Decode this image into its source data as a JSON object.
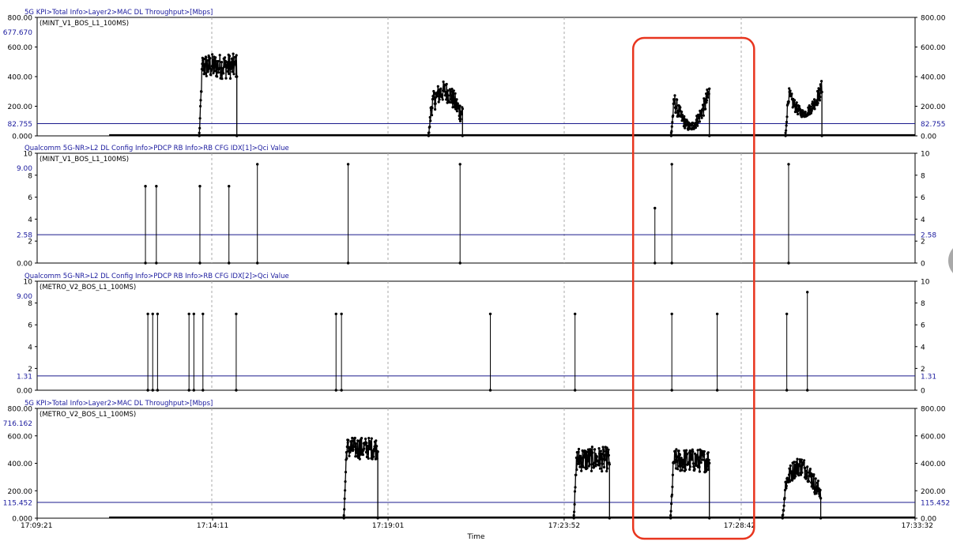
{
  "colors": {
    "plot_border": "#000000",
    "grid": "#a8a8a8",
    "data_line": "#000000",
    "reference_line": "#1a1a8c",
    "path_label": "#1a1a9e",
    "reference_label": "#1a1a9e",
    "highlight_box": "#e8351e",
    "scroll_knob": "#9a9a9a"
  },
  "x_axis": {
    "label": "Time",
    "ticks": [
      "17:09:21",
      "17:14:11",
      "17:19:01",
      "17:23:52",
      "17:28:42",
      "17:33:32"
    ],
    "grid": "dashed"
  },
  "highlight": {
    "shape": "rounded-rectangle",
    "from_time": "17:25:46",
    "to_time": "17:29:06"
  },
  "chart_data": [
    {
      "type": "line",
      "path_label": "5G KPI>Total Info>Layer2>MAC DL Throughput>[Mbps]",
      "legend": "(MINT_V1_BOS_L1_100MS)",
      "ylim": [
        0,
        800
      ],
      "y_ticks": [
        "800.00",
        "600.00",
        "400.00",
        "200.00",
        "0.000"
      ],
      "right_y_ticks": [
        "800.00",
        "600.00",
        "400.00",
        "200.00",
        "0.00"
      ],
      "y_max_label": "677.670",
      "reference_value": 82.755,
      "reference_label": "82.755",
      "time_span": [
        "17:09:21",
        "17:33:32"
      ],
      "bursts": [
        {
          "start": "17:13:49",
          "end": "17:14:51",
          "base": 470,
          "amp": 85,
          "peak": 665
        },
        {
          "start": "17:20:08",
          "end": "17:21:04",
          "base": 300,
          "amp": 70,
          "peak": 590,
          "shape": "hump"
        },
        {
          "start": "17:26:49",
          "end": "17:27:52",
          "base": 290,
          "amp": 70,
          "peak": 420,
          "shape": "saddle",
          "mid": 60
        },
        {
          "start": "17:29:58",
          "end": "17:30:58",
          "base": 320,
          "amp": 60,
          "peak": 550,
          "shape": "saddle",
          "mid": 150
        }
      ],
      "baseline_spans": [
        [
          "17:11:20",
          "17:33:32"
        ]
      ]
    },
    {
      "type": "line",
      "path_label": "Qualcomm 5G-NR>L2 DL Config Info>PDCP RB Info>RB CFG IDX[1]>Qci Value",
      "legend": "(MINT_V1_BOS_L1_100MS)",
      "ylim": [
        0,
        10
      ],
      "y_ticks": [
        "10",
        "8",
        "6",
        "4",
        "2",
        "0.00"
      ],
      "right_y_ticks": [
        "10",
        "8",
        "6",
        "4",
        "2",
        "0"
      ],
      "y_max_label": "9.00",
      "reference_value": 2.58,
      "reference_label": "2.58",
      "spikes": [
        {
          "t": "17:12:20",
          "v": 7
        },
        {
          "t": "17:12:38",
          "v": 7
        },
        {
          "t": "17:13:50",
          "v": 7
        },
        {
          "t": "17:14:38",
          "v": 7
        },
        {
          "t": "17:15:25",
          "v": 9
        },
        {
          "t": "17:17:55",
          "v": 9
        },
        {
          "t": "17:21:00",
          "v": 9
        },
        {
          "t": "17:26:22",
          "v": 5
        },
        {
          "t": "17:26:50",
          "v": 9
        },
        {
          "t": "17:30:03",
          "v": 9
        }
      ]
    },
    {
      "type": "line",
      "path_label": "Qualcomm 5G-NR>L2 DL Config Info>PDCP RB Info>RB CFG IDX[2]>Qci Value",
      "legend": "(METRO_V2_BOS_L1_100MS)",
      "ylim": [
        0,
        10
      ],
      "y_ticks": [
        "10",
        "8",
        "6",
        "4",
        "2",
        "0.00"
      ],
      "right_y_ticks": [
        "10",
        "8",
        "6",
        "4",
        "2",
        "0"
      ],
      "y_max_label": "9.00",
      "reference_value": 1.31,
      "reference_label": "1.31",
      "spikes": [
        {
          "t": "17:12:24",
          "v": 7
        },
        {
          "t": "17:12:32",
          "v": 7
        },
        {
          "t": "17:12:40",
          "v": 7
        },
        {
          "t": "17:13:32",
          "v": 7
        },
        {
          "t": "17:13:40",
          "v": 7
        },
        {
          "t": "17:13:55",
          "v": 7
        },
        {
          "t": "17:14:50",
          "v": 7
        },
        {
          "t": "17:17:35",
          "v": 7
        },
        {
          "t": "17:17:44",
          "v": 7
        },
        {
          "t": "17:21:50",
          "v": 7
        },
        {
          "t": "17:24:10",
          "v": 7
        },
        {
          "t": "17:26:50",
          "v": 7
        },
        {
          "t": "17:28:05",
          "v": 7
        },
        {
          "t": "17:30:00",
          "v": 7
        },
        {
          "t": "17:30:34",
          "v": 9
        }
      ]
    },
    {
      "type": "line",
      "path_label": "5G KPI>Total Info>Layer2>MAC DL Throughput>[Mbps]",
      "legend": "(METRO_V2_BOS_L1_100MS)",
      "ylim": [
        0,
        800
      ],
      "y_ticks": [
        "800.00",
        "600.00",
        "400.00",
        "200.00",
        "0.000"
      ],
      "right_y_ticks": [
        "800.00",
        "600.00",
        "400.00",
        "200.00",
        "0.00"
      ],
      "y_max_label": "716.162",
      "reference_value": 115.452,
      "reference_label": "115.452",
      "time_span": [
        "17:09:21",
        "17:33:32"
      ],
      "bursts": [
        {
          "start": "17:17:48",
          "end": "17:18:44",
          "base": 510,
          "amp": 80,
          "peak": 700
        },
        {
          "start": "17:24:08",
          "end": "17:25:07",
          "base": 430,
          "amp": 90,
          "peak": 620
        },
        {
          "start": "17:26:48",
          "end": "17:27:52",
          "base": 420,
          "amp": 85,
          "peak": 610
        },
        {
          "start": "17:29:53",
          "end": "17:30:56",
          "base": 380,
          "amp": 70,
          "peak": 580,
          "shape": "hump"
        }
      ],
      "baseline_spans": [
        [
          "17:11:20",
          "17:33:32"
        ]
      ]
    }
  ]
}
